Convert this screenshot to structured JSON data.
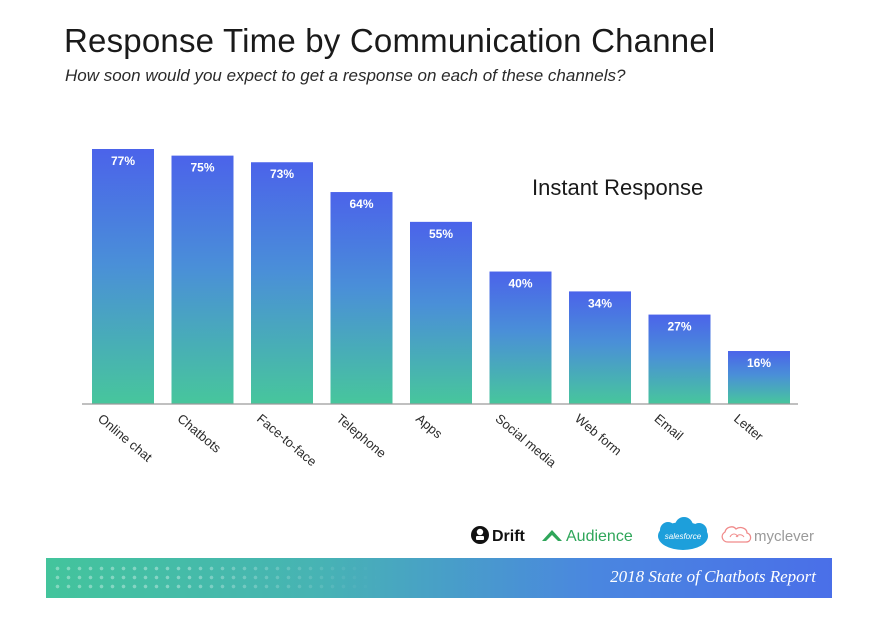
{
  "colors": {
    "bar_top": "#4b63ea",
    "bar_bottom": "#47c69c",
    "axis": "#8a8a8a",
    "text_dark": "#1a1a1a"
  },
  "chart_data": {
    "type": "bar",
    "title": "Response Time by Communication Channel",
    "subtitle": "How soon would you expect to get a response on each of these channels?",
    "series_label": "Instant Response",
    "categories": [
      "Online chat",
      "Chatbots",
      "Face-to-face",
      "Telephone",
      "Apps",
      "Social media",
      "Web form",
      "Email",
      "Letter"
    ],
    "values": [
      77,
      75,
      73,
      64,
      55,
      40,
      34,
      27,
      16
    ],
    "data_labels": [
      "77%",
      "75%",
      "73%",
      "64%",
      "55%",
      "40%",
      "34%",
      "27%",
      "16%"
    ],
    "ylim": [
      0,
      77
    ],
    "xlabel": "",
    "ylabel": "",
    "grid": false
  },
  "logos": {
    "drift": "Drift",
    "audience": "Audience",
    "salesforce": "salesforce",
    "myclever": "myclever"
  },
  "footer": {
    "report": "2018 State of Chatbots Report"
  }
}
